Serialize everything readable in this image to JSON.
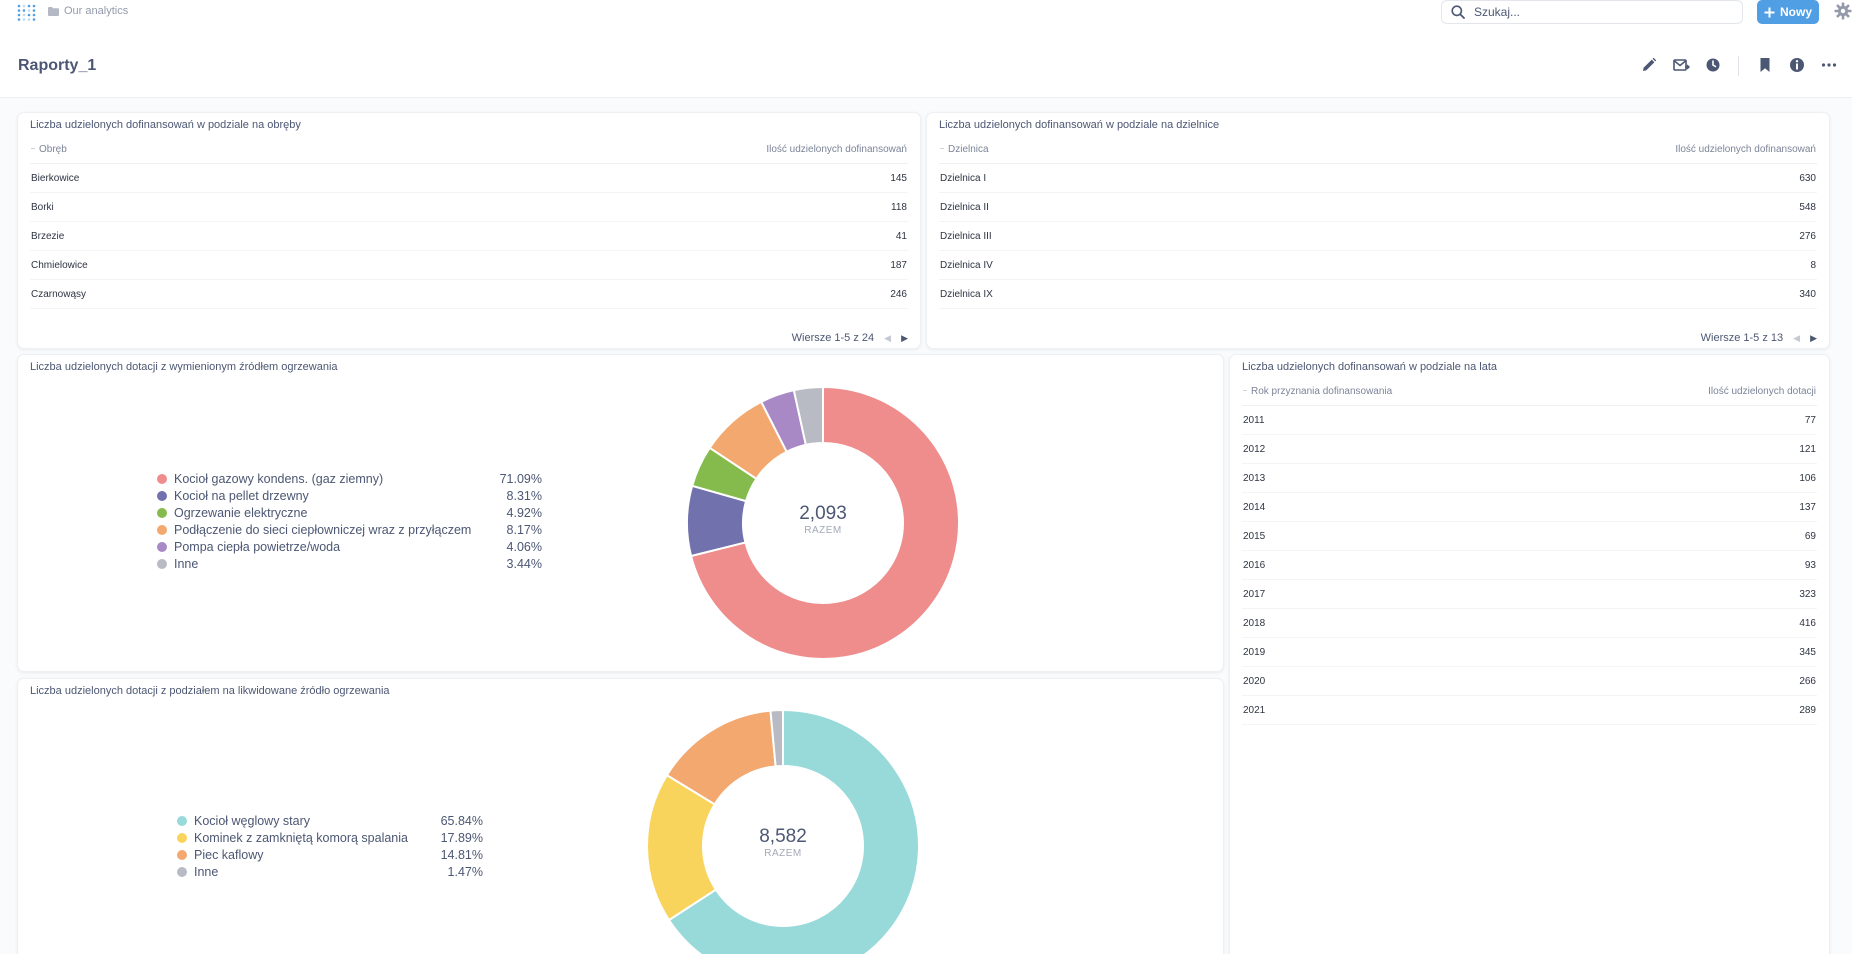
{
  "nav": {
    "breadcrumb": "Our analytics",
    "search_placeholder": "Szukaj...",
    "new_button": "Nowy"
  },
  "dashboard": {
    "title": "Raporty_1"
  },
  "card_obreby": {
    "title": "Liczba udzielonych dofinansowań w podziale na obręby",
    "col1": "Obręb",
    "col2": "Ilość udzielonych dofinansowań",
    "rows": [
      {
        "name": "Bierkowice",
        "value": "145"
      },
      {
        "name": "Borki",
        "value": "118"
      },
      {
        "name": "Brzezie",
        "value": "41"
      },
      {
        "name": "Chmielowice",
        "value": "187"
      },
      {
        "name": "Czarnowąsy",
        "value": "246"
      }
    ],
    "pager": "Wiersze 1-5 z 24"
  },
  "card_dzielnice": {
    "title": "Liczba udzielonych dofinansowań w podziale na dzielnice",
    "col1": "Dzielnica",
    "col2": "Ilość udzielonych dofinansowań",
    "rows": [
      {
        "name": "Dzielnica I",
        "value": "630"
      },
      {
        "name": "Dzielnica II",
        "value": "548"
      },
      {
        "name": "Dzielnica III",
        "value": "276"
      },
      {
        "name": "Dzielnica IV",
        "value": "8"
      },
      {
        "name": "Dzielnica IX",
        "value": "340"
      }
    ],
    "pager": "Wiersze 1-5 z 13"
  },
  "card_lata": {
    "title": "Liczba udzielonych dofinansowań w podziale na lata",
    "col1": "Rok przyznania dofinansowania",
    "col2": "Ilość udzielonych dotacji",
    "rows": [
      {
        "name": "2011",
        "value": "77"
      },
      {
        "name": "2012",
        "value": "121"
      },
      {
        "name": "2013",
        "value": "106"
      },
      {
        "name": "2014",
        "value": "137"
      },
      {
        "name": "2015",
        "value": "69"
      },
      {
        "name": "2016",
        "value": "93"
      },
      {
        "name": "2017",
        "value": "323"
      },
      {
        "name": "2018",
        "value": "416"
      },
      {
        "name": "2019",
        "value": "345"
      },
      {
        "name": "2020",
        "value": "266"
      },
      {
        "name": "2021",
        "value": "289"
      }
    ]
  },
  "chart_data": [
    {
      "type": "pie",
      "title": "Liczba udzielonych dotacji z wymienionym źródłem ogrzewania",
      "total": "2,093",
      "total_label": "RAZEM",
      "slices": [
        {
          "label": "Kocioł gazowy kondens. (gaz ziemny)",
          "pct_text": "71.09%",
          "value": 71.09,
          "color": "#ef8c8c"
        },
        {
          "label": "Kocioł na pellet drzewny",
          "pct_text": "8.31%",
          "value": 8.31,
          "color": "#7172ad"
        },
        {
          "label": "Ogrzewanie elektryczne",
          "pct_text": "4.92%",
          "value": 4.92,
          "color": "#84bb4c"
        },
        {
          "label": "Podłączenie do sieci ciepłowniczej wraz z przyłączem",
          "pct_text": "8.17%",
          "value": 8.17,
          "color": "#f2a86f"
        },
        {
          "label": "Pompa ciepła powietrze/woda",
          "pct_text": "4.06%",
          "value": 4.06,
          "color": "#a989c5"
        },
        {
          "label": "Inne",
          "pct_text": "3.44%",
          "value": 3.44,
          "color": "#b8bbc3"
        }
      ]
    },
    {
      "type": "pie",
      "title": "Liczba udzielonych dotacji z podziałem na likwidowane źródło ogrzewania",
      "total": "8,582",
      "total_label": "RAZEM",
      "slices": [
        {
          "label": "Kocioł węglowy stary",
          "pct_text": "65.84%",
          "value": 65.84,
          "color": "#98d9d9"
        },
        {
          "label": "Kominek z zamkniętą komorą spalania",
          "pct_text": "17.89%",
          "value": 17.89,
          "color": "#f9d45c"
        },
        {
          "label": "Piec kaflowy",
          "pct_text": "14.81%",
          "value": 14.81,
          "color": "#f2a86f"
        },
        {
          "label": "Inne",
          "pct_text": "1.47%",
          "value": 1.47,
          "color": "#b8bbc3"
        }
      ]
    }
  ]
}
